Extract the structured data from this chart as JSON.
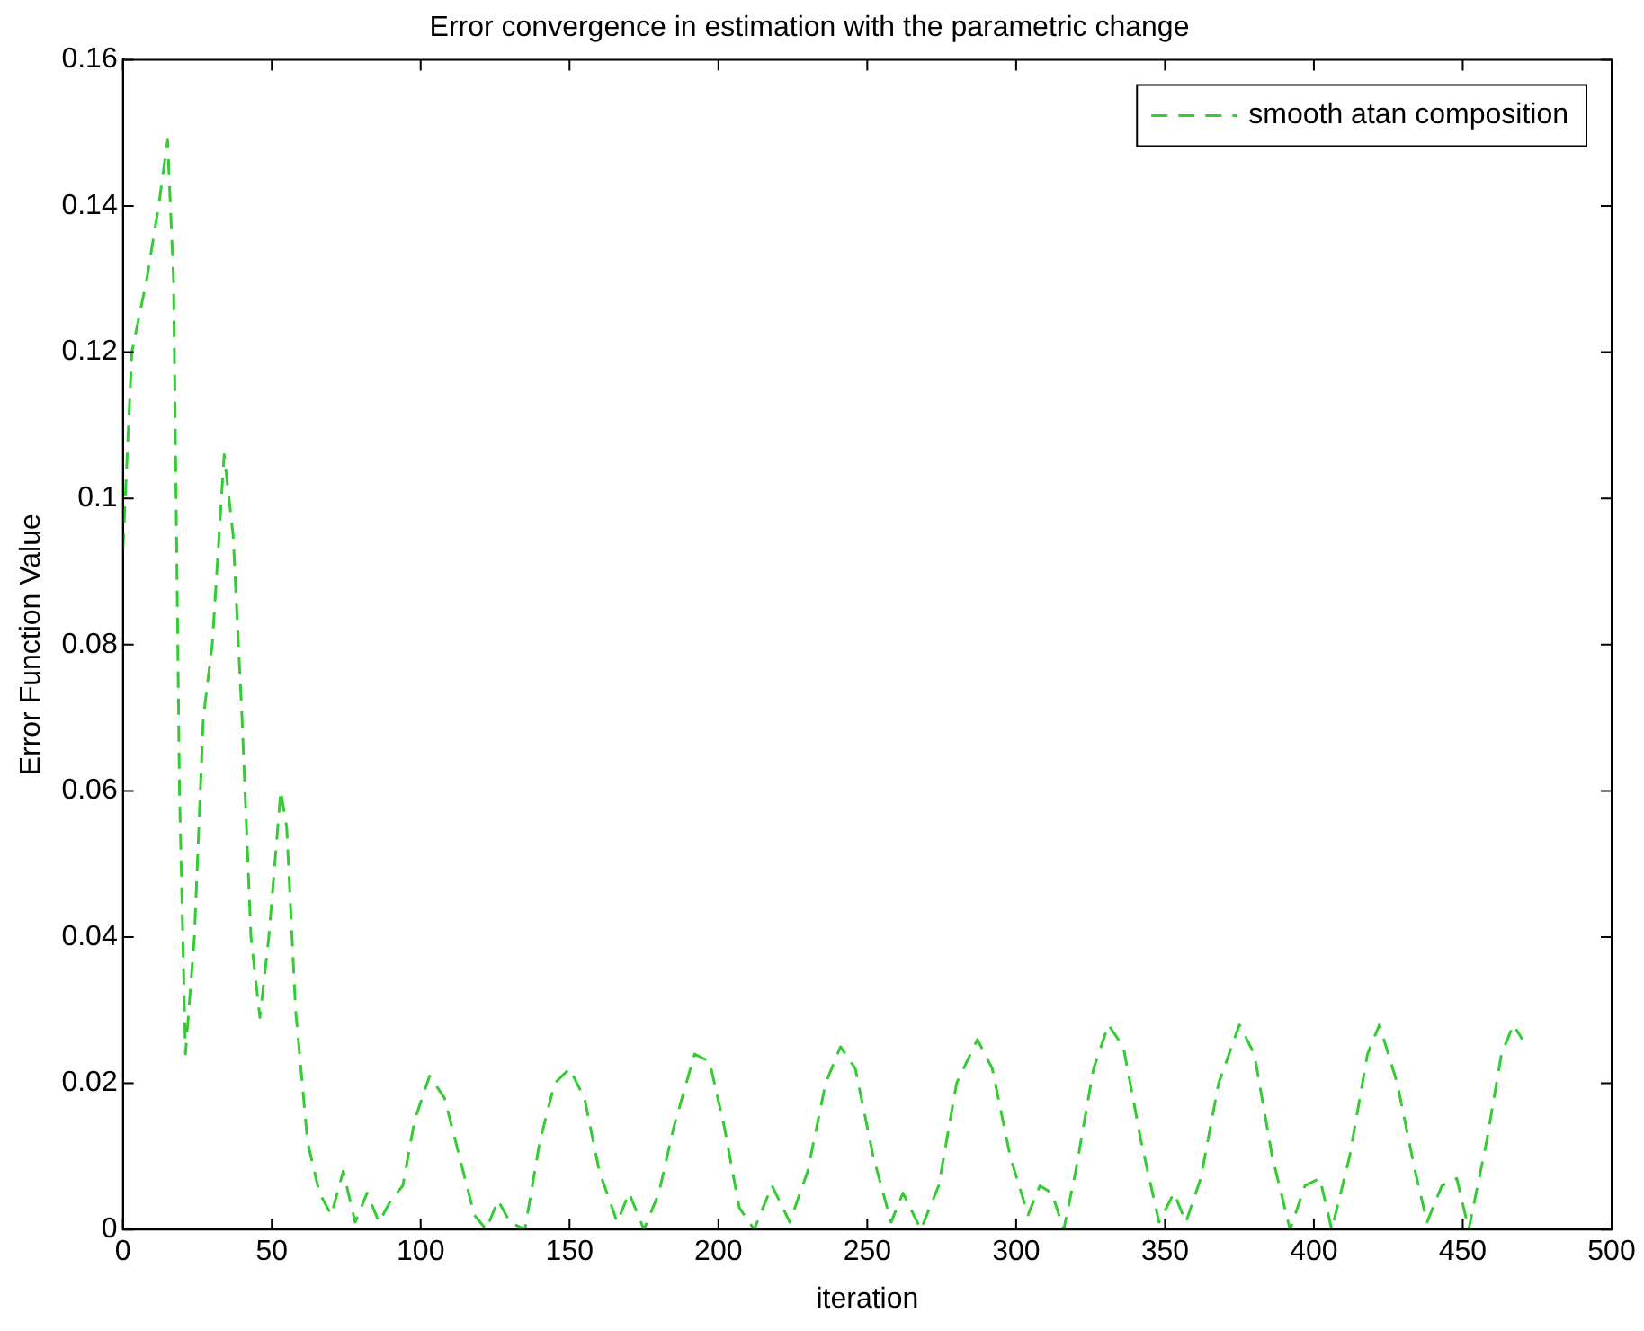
{
  "chart_data": {
    "type": "line",
    "title": "Error convergence in estimation with the parametric change",
    "xlabel": "iteration",
    "ylabel": "Error Function Value",
    "xlim": [
      0,
      500
    ],
    "xticks": [
      0,
      50,
      100,
      150,
      200,
      250,
      300,
      350,
      400,
      450,
      500
    ],
    "ylim": [
      0,
      0.16
    ],
    "yticks": [
      0,
      0.02,
      0.04,
      0.06,
      0.08,
      0.1,
      0.12,
      0.14,
      0.16
    ],
    "grid": false,
    "legend": "top right",
    "line_style": "dashed",
    "marker": "none",
    "series": [
      {
        "name": "smooth atan composition",
        "color": "#33cc33",
        "x": [
          0,
          3,
          8,
          12,
          15,
          17,
          19,
          21,
          24,
          27,
          30,
          34,
          37,
          40,
          43,
          46,
          49,
          53,
          55,
          58,
          62,
          66,
          70,
          74,
          78,
          82,
          86,
          90,
          94,
          98,
          103,
          108,
          113,
          118,
          122,
          126,
          130,
          135,
          140,
          145,
          150,
          155,
          160,
          166,
          170,
          175,
          180,
          185,
          192,
          197,
          202,
          207,
          212,
          218,
          224,
          230,
          236,
          241,
          246,
          252,
          258,
          262,
          268,
          274,
          280,
          287,
          292,
          298,
          304,
          308,
          312,
          316,
          320,
          326,
          331,
          336,
          342,
          348,
          353,
          357,
          362,
          368,
          375,
          380,
          386,
          392,
          397,
          402,
          406,
          412,
          418,
          422,
          428,
          434,
          438,
          443,
          448,
          452,
          458,
          463,
          467,
          470
        ],
        "values": [
          0.093,
          0.12,
          0.13,
          0.14,
          0.149,
          0.13,
          0.06,
          0.024,
          0.04,
          0.07,
          0.08,
          0.106,
          0.095,
          0.07,
          0.04,
          0.029,
          0.04,
          0.06,
          0.055,
          0.03,
          0.012,
          0.005,
          0.002,
          0.008,
          0.001,
          0.005,
          0.001,
          0.004,
          0.006,
          0.015,
          0.021,
          0.018,
          0.01,
          0.002,
          0,
          0.004,
          0.001,
          0,
          0.012,
          0.02,
          0.022,
          0.018,
          0.008,
          0.001,
          0.005,
          0,
          0.005,
          0.014,
          0.024,
          0.023,
          0.014,
          0.003,
          0,
          0.006,
          0.001,
          0.008,
          0.02,
          0.025,
          0.022,
          0.01,
          0.001,
          0.005,
          0,
          0.006,
          0.02,
          0.026,
          0.022,
          0.01,
          0.002,
          0.006,
          0.005,
          0,
          0.008,
          0.022,
          0.028,
          0.025,
          0.012,
          0.001,
          0.005,
          0.001,
          0.007,
          0.02,
          0.028,
          0.024,
          0.01,
          0,
          0.006,
          0.007,
          0,
          0.01,
          0.024,
          0.028,
          0.02,
          0.008,
          0.001,
          0.006,
          0.007,
          0,
          0.012,
          0.024,
          0.028,
          0.026
        ]
      }
    ]
  }
}
